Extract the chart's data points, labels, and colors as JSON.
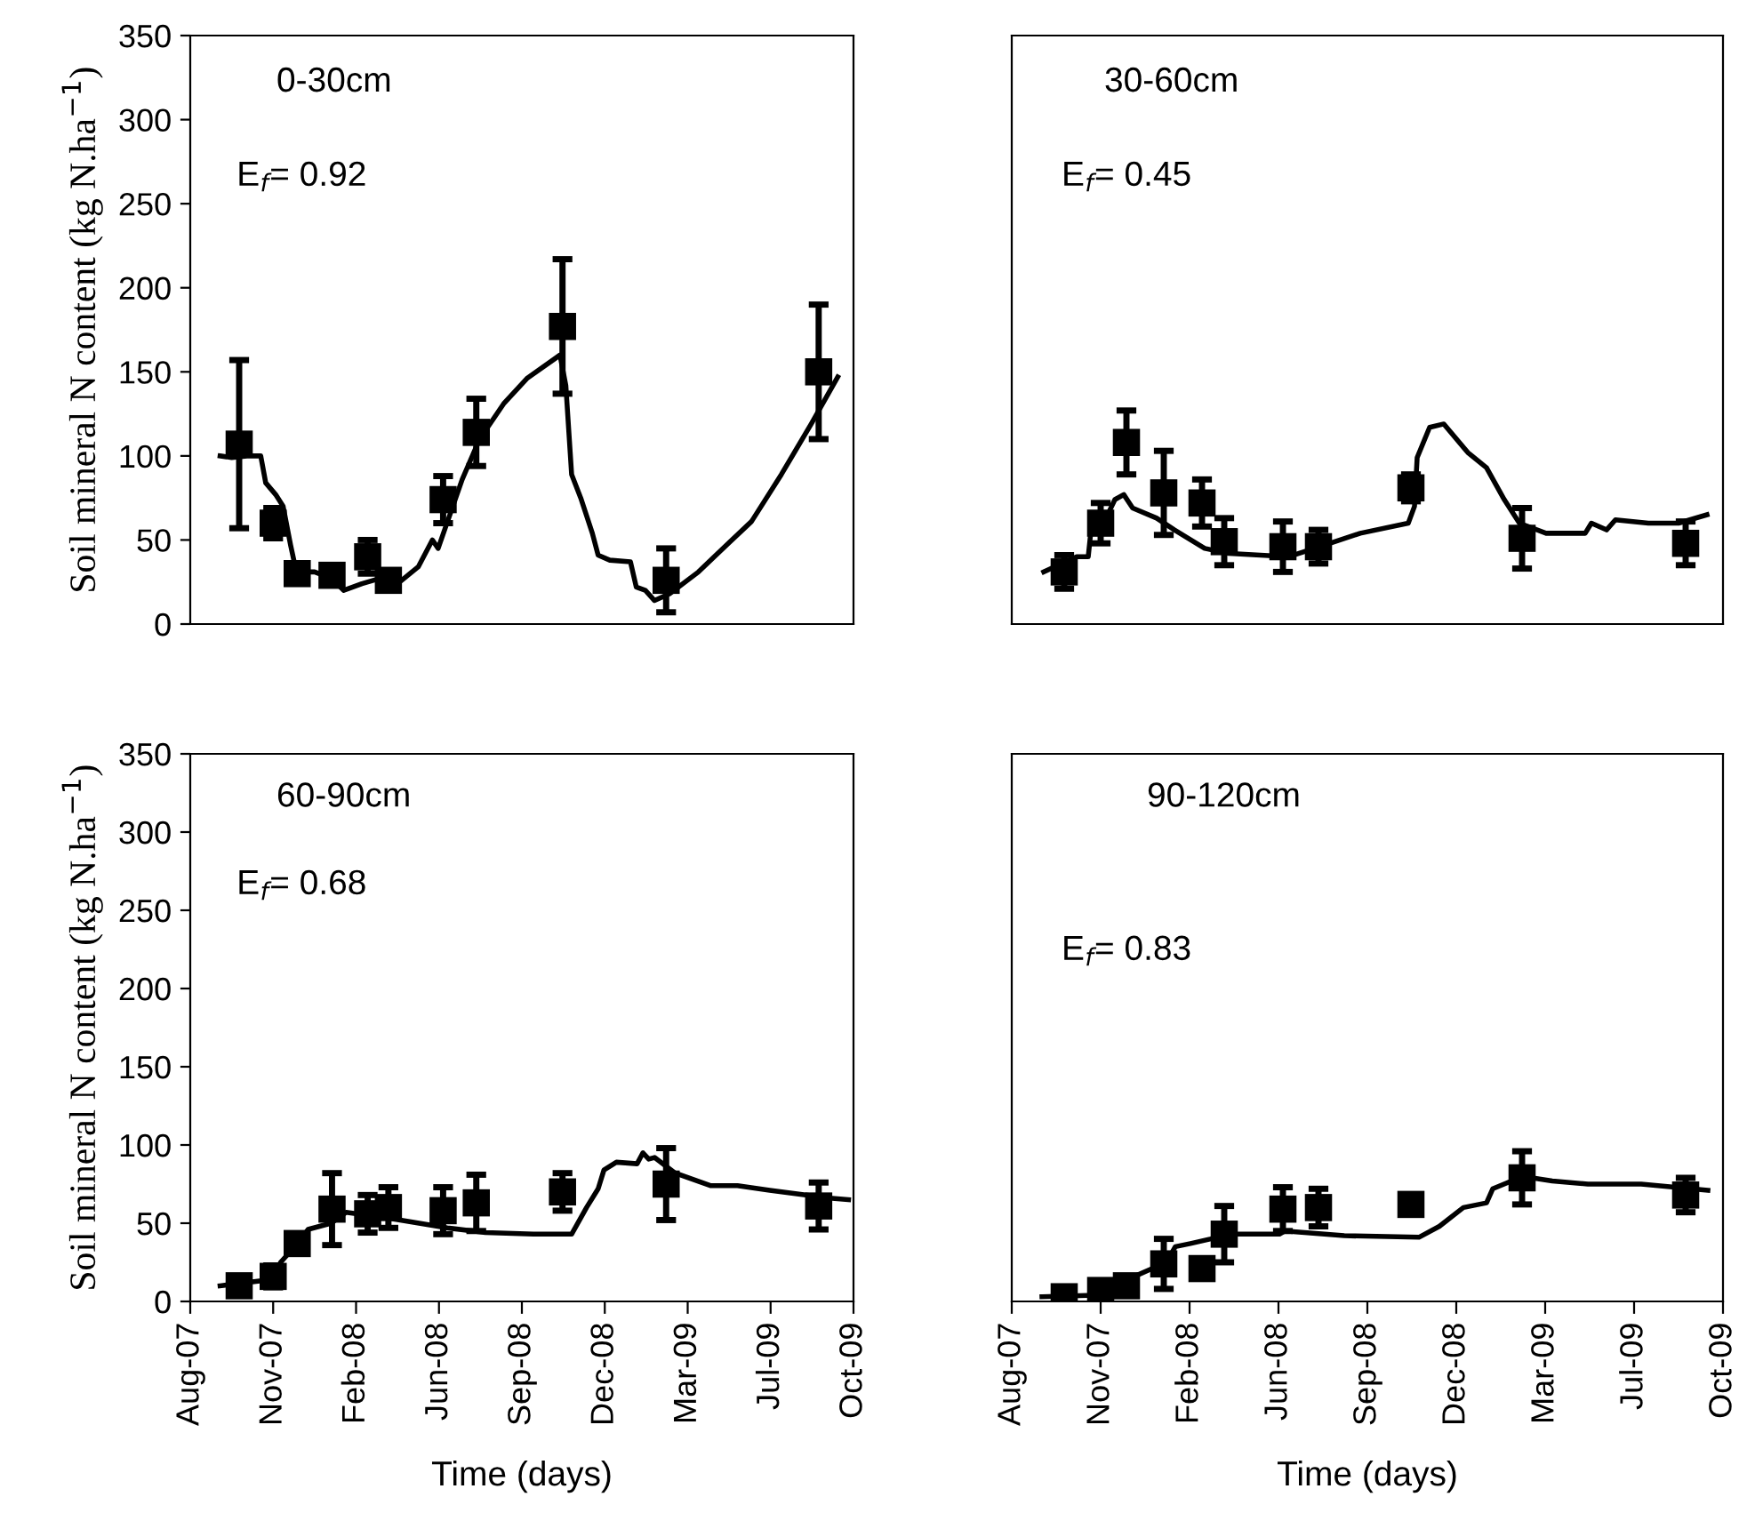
{
  "chart_data": [
    {
      "type": "line",
      "annotations": [
        "0-30cm",
        "E$_{f}$= 0.92"
      ],
      "ylabel": "Soil mineral N content (kg N.ha$^{−1}$)",
      "xlim": [
        "2007-08-07",
        "2009-10-15"
      ],
      "ylim": [
        0,
        350
      ],
      "yticks": [
        0,
        50,
        100,
        150,
        200,
        250,
        300,
        350
      ],
      "tick_labels": "y",
      "grid": false,
      "legend": false,
      "series": [
        {
          "type": "scatter",
          "marker": "square",
          "color": "#000000",
          "x": [
            "2007-10-05",
            "2007-11-15",
            "2007-12-14",
            "2008-01-25",
            "2008-03-08",
            "2008-04-02",
            "2008-06-07",
            "2008-07-17",
            "2008-10-29",
            "2009-03-03",
            "2009-09-03"
          ],
          "values": [
            107,
            60,
            30,
            29,
            40,
            26,
            74,
            114,
            177,
            26,
            150
          ],
          "errors": [
            50,
            9,
            null,
            null,
            10,
            null,
            14,
            20,
            40,
            19,
            40
          ]
        },
        {
          "type": "line",
          "color": "#000000",
          "line_style": "solid",
          "x": [
            "2007-09-12",
            "2007-09-26",
            "2007-10-17",
            "2007-10-31",
            "2007-11-06",
            "2007-11-18",
            "2007-11-27",
            "2007-12-06",
            "2007-12-13",
            "2008-01-04",
            "2008-01-25",
            "2008-02-08",
            "2008-03-01",
            "2008-03-22",
            "2008-04-13",
            "2008-05-08",
            "2008-05-25",
            "2008-06-01",
            "2008-06-30",
            "2008-07-21",
            "2008-08-19",
            "2008-09-16",
            "2008-10-26",
            "2008-11-02",
            "2008-11-09",
            "2008-11-20",
            "2008-12-04",
            "2008-12-11",
            "2008-12-25",
            "2009-01-19",
            "2009-01-26",
            "2009-02-06",
            "2009-02-17",
            "2009-03-07",
            "2009-04-11",
            "2009-05-17",
            "2009-06-14",
            "2009-07-20",
            "2009-08-25",
            "2009-09-26"
          ],
          "values": [
            100,
            99,
            100,
            100,
            84,
            77,
            70,
            47,
            31,
            31,
            27,
            20,
            24,
            27,
            24,
            34,
            50,
            45,
            86,
            110,
            131,
            146,
            160,
            142,
            89,
            75,
            54,
            41,
            38,
            37,
            22,
            20,
            14,
            18,
            31,
            48,
            61,
            89,
            119,
            147
          ]
        }
      ]
    },
    {
      "type": "line",
      "annotations": [
        "30-60cm",
        "E$_{f}$= 0.45"
      ],
      "xlim": [
        "2007-08-07",
        "2009-10-15"
      ],
      "ylim": [
        0,
        350
      ],
      "tick_labels": false,
      "grid": false,
      "legend": false,
      "series": [
        {
          "type": "scatter",
          "marker": "square",
          "color": "#000000",
          "x": [
            "2007-10-05",
            "2007-11-15",
            "2007-12-14",
            "2008-01-25",
            "2008-03-08",
            "2008-04-02",
            "2008-06-07",
            "2008-07-17",
            "2008-10-29",
            "2009-03-03",
            "2009-09-03"
          ],
          "values": [
            31,
            60,
            108,
            78,
            72,
            49,
            46,
            46,
            81,
            51,
            48
          ],
          "errors": [
            10,
            12,
            19,
            25,
            14,
            14,
            15,
            10,
            8,
            18,
            13
          ]
        },
        {
          "type": "line",
          "color": "#000000",
          "line_style": "solid",
          "x": [
            "2007-09-12",
            "2007-10-19",
            "2007-11-01",
            "2007-11-05",
            "2007-11-21",
            "2007-12-01",
            "2007-12-11",
            "2007-12-21",
            "2008-01-17",
            "2008-02-06",
            "2008-03-11",
            "2008-04-07",
            "2008-06-13",
            "2008-07-24",
            "2008-09-02",
            "2008-10-26",
            "2008-11-02",
            "2008-11-05",
            "2008-11-19",
            "2008-12-05",
            "2009-01-01",
            "2009-01-22",
            "2009-02-11",
            "2009-02-28",
            "2009-03-30",
            "2009-05-13",
            "2009-05-20",
            "2009-06-06",
            "2009-06-16",
            "2009-07-23",
            "2009-08-26",
            "2009-09-27"
          ],
          "values": [
            31,
            40,
            40,
            60,
            63,
            74,
            77,
            69,
            63,
            56,
            45,
            42,
            40,
            47,
            54,
            60,
            70,
            99,
            117,
            119,
            102,
            93,
            74,
            60,
            54,
            54,
            60,
            56,
            62,
            60,
            60,
            65
          ]
        }
      ]
    },
    {
      "type": "line",
      "annotations": [
        "60-90cm",
        "E$_{f}$= 0.68"
      ],
      "ylabel": "Soil mineral N content (kg N.ha$^{−1}$)",
      "xlabel": "Time (days)",
      "xlim": [
        "2007-08-07",
        "2009-10-15"
      ],
      "ylim": [
        0,
        350
      ],
      "yticks": [
        0,
        50,
        100,
        150,
        200,
        250,
        300,
        350
      ],
      "xticks": [
        {
          "value": "2007-08-07",
          "label": "Aug-07"
        },
        {
          "value": "2007-11-15",
          "label": "Nov-07"
        },
        {
          "value": "2008-02-23",
          "label": "Feb-08"
        },
        {
          "value": "2008-06-02",
          "label": "Jun-08"
        },
        {
          "value": "2008-09-10",
          "label": "Sep-08"
        },
        {
          "value": "2008-12-19",
          "label": "Dec-08"
        },
        {
          "value": "2009-03-29",
          "label": "Mar-09"
        },
        {
          "value": "2009-07-07",
          "label": "Jul-09"
        },
        {
          "value": "2009-10-15",
          "label": "Oct-09"
        }
      ],
      "grid": false,
      "legend": false,
      "series": [
        {
          "type": "scatter",
          "marker": "square",
          "color": "#000000",
          "x": [
            "2007-10-05",
            "2007-11-15",
            "2007-12-14",
            "2008-01-25",
            "2008-03-08",
            "2008-04-02",
            "2008-06-07",
            "2008-07-17",
            "2008-10-29",
            "2009-03-03",
            "2009-09-03"
          ],
          "values": [
            10,
            16,
            37,
            59,
            56,
            60,
            58,
            63,
            70,
            75,
            61
          ],
          "errors": [
            5,
            7,
            4,
            23,
            12,
            13,
            15,
            18,
            12,
            23,
            15
          ]
        },
        {
          "type": "line",
          "color": "#000000",
          "line_style": "solid",
          "x": [
            "2007-09-12",
            "2007-11-14",
            "2007-11-24",
            "2007-12-16",
            "2007-12-27",
            "2008-01-24",
            "2008-02-11",
            "2008-04-05",
            "2008-06-12",
            "2008-07-28",
            "2008-09-24",
            "2008-11-09",
            "2008-11-27",
            "2008-12-11",
            "2008-12-18",
            "2009-01-02",
            "2009-01-27",
            "2009-02-03",
            "2009-02-10",
            "2009-02-17",
            "2009-03-14",
            "2009-04-26",
            "2009-05-28",
            "2009-07-06",
            "2009-09-16",
            "2009-10-09"
          ],
          "values": [
            10,
            14,
            25,
            38,
            46,
            50,
            57,
            53,
            47,
            44,
            43,
            43,
            60,
            72,
            84,
            89,
            88,
            95,
            91,
            92,
            82,
            74,
            74,
            71,
            66,
            65
          ]
        }
      ]
    },
    {
      "type": "line",
      "annotations": [
        "90-120cm",
        "E$_{f}$= 0.83"
      ],
      "xlabel": "Time (days)",
      "xlim": [
        "2007-08-07",
        "2009-10-15"
      ],
      "ylim": [
        0,
        350
      ],
      "xticks": [
        {
          "value": "2007-08-07",
          "label": "Aug-07"
        },
        {
          "value": "2007-11-15",
          "label": "Nov-07"
        },
        {
          "value": "2008-02-23",
          "label": "Feb-08"
        },
        {
          "value": "2008-06-02",
          "label": "Jun-08"
        },
        {
          "value": "2008-09-10",
          "label": "Sep-08"
        },
        {
          "value": "2008-12-19",
          "label": "Dec-08"
        },
        {
          "value": "2009-03-29",
          "label": "Mar-09"
        },
        {
          "value": "2009-07-07",
          "label": "Jul-09"
        },
        {
          "value": "2009-10-15",
          "label": "Oct-09"
        }
      ],
      "tick_labels": "x",
      "grid": false,
      "legend": false,
      "series": [
        {
          "type": "scatter",
          "marker": "square",
          "color": "#000000",
          "x": [
            "2007-10-05",
            "2007-11-15",
            "2007-12-14",
            "2008-01-25",
            "2008-03-08",
            "2008-04-02",
            "2008-06-07",
            "2008-07-17",
            "2008-10-29",
            "2009-03-03",
            "2009-09-03"
          ],
          "values": [
            3,
            7,
            10,
            24,
            21,
            43,
            59,
            60,
            62,
            79,
            68
          ],
          "errors": [
            null,
            null,
            null,
            16,
            null,
            18,
            14,
            12,
            null,
            17,
            11
          ]
        },
        {
          "type": "line",
          "color": "#000000",
          "line_style": "solid",
          "x": [
            "2007-09-10",
            "2007-11-09",
            "2007-12-06",
            "2007-12-19",
            "2008-01-08",
            "2008-01-28",
            "2008-02-07",
            "2008-02-24",
            "2008-03-18",
            "2008-04-04",
            "2008-06-03",
            "2008-06-09",
            "2008-08-15",
            "2008-11-07",
            "2008-11-30",
            "2008-12-27",
            "2009-01-22",
            "2009-01-29",
            "2009-02-15",
            "2009-03-03",
            "2009-04-06",
            "2009-05-16",
            "2009-07-15",
            "2009-09-28"
          ],
          "values": [
            3,
            4,
            8,
            15,
            20,
            25,
            35,
            37,
            40,
            43,
            43,
            45,
            42,
            41,
            48,
            60,
            63,
            72,
            76,
            80,
            77,
            75,
            75,
            71
          ]
        }
      ]
    }
  ]
}
